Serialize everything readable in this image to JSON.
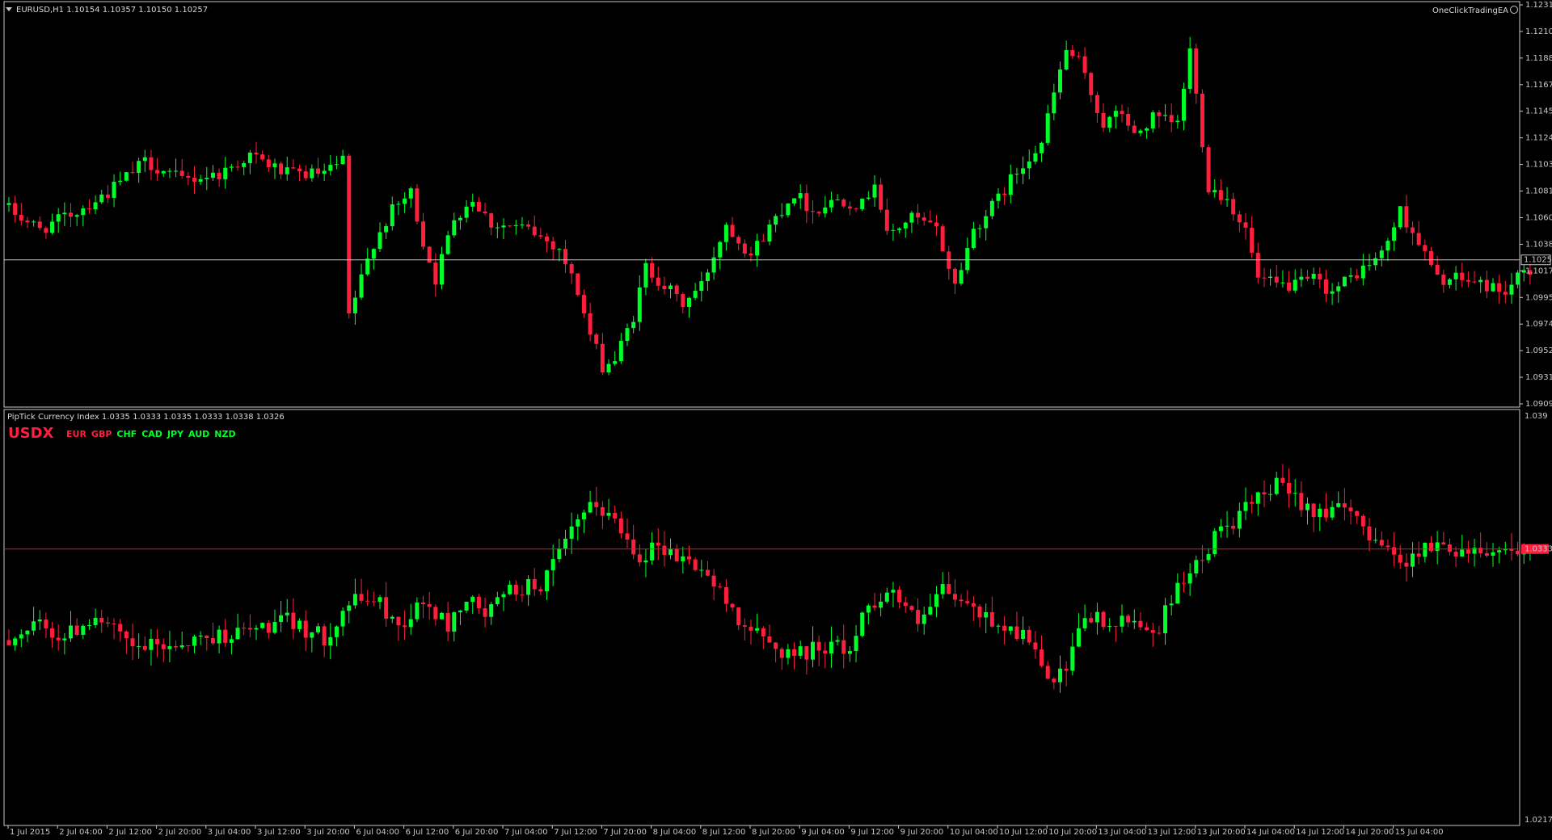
{
  "colors": {
    "background": "#000000",
    "bull": "#00ff2a",
    "bear": "#ff1f3d",
    "axis": "#c8c8c8",
    "bid_line": "#c8c8c8",
    "index_line": "#cc2233",
    "index_tag": "#ff1f3d"
  },
  "header": {
    "symbol_title": "EURUSD,H1  1.10154 1.10357 1.10150 1.10257",
    "ea_label": "OneClickTradingEA",
    "ea_icon": "smiley-icon",
    "menu_icon": "triangle-down-icon"
  },
  "indicator": {
    "title": "PipTick Currency Index 1.0335 1.0333 1.0335 1.0333 1.0338 1.0326",
    "main_symbol": "USDX",
    "main_color": "#ff1f3d",
    "currencies": [
      {
        "code": "EUR",
        "color": "#ff1f3d"
      },
      {
        "code": "GBP",
        "color": "#ff1f3d"
      },
      {
        "code": "CHF",
        "color": "#00ff2a"
      },
      {
        "code": "CAD",
        "color": "#00ff2a"
      },
      {
        "code": "JPY",
        "color": "#00ff2a"
      },
      {
        "code": "AUD",
        "color": "#00ff2a"
      },
      {
        "code": "NZD",
        "color": "#00ff2a"
      }
    ]
  },
  "main_axis": {
    "labels": [
      "1.12315",
      "1.12100",
      "1.11885",
      "1.11670",
      "1.11455",
      "1.11240",
      "1.11030",
      "1.10815",
      "1.10600",
      "1.10385",
      "1.10170",
      "1.09955",
      "1.09740",
      "1.09525",
      "1.09310",
      "1.09095"
    ],
    "min": 1.09095,
    "max": 1.12315,
    "current_price": "1.10257",
    "current_value": 1.10257
  },
  "index_axis": {
    "top_label": "1.039",
    "bottom_label": "1.0217",
    "min": 1.0217,
    "max": 1.039,
    "current_label": "1.0333",
    "current_value": 1.0333
  },
  "time_axis": {
    "labels": [
      "1 Jul 2015",
      "2 Jul 04:00",
      "2 Jul 12:00",
      "2 Jul 20:00",
      "3 Jul 04:00",
      "3 Jul 12:00",
      "3 Jul 20:00",
      "6 Jul 04:00",
      "6 Jul 12:00",
      "6 Jul 20:00",
      "7 Jul 04:00",
      "7 Jul 12:00",
      "7 Jul 20:00",
      "8 Jul 04:00",
      "8 Jul 12:00",
      "8 Jul 20:00",
      "9 Jul 04:00",
      "9 Jul 12:00",
      "9 Jul 20:00",
      "10 Jul 04:00",
      "10 Jul 12:00",
      "10 Jul 20:00",
      "13 Jul 04:00",
      "13 Jul 12:00",
      "13 Jul 20:00",
      "14 Jul 04:00",
      "14 Jul 12:00",
      "14 Jul 20:00",
      "15 Jul 04:00"
    ]
  },
  "chart_data": [
    {
      "type": "candlestick",
      "symbol": "EURUSD",
      "timeframe": "H1",
      "ylim": [
        1.09095,
        1.12315
      ],
      "waypoints": [
        [
          0,
          1.107
        ],
        [
          6,
          1.105
        ],
        [
          12,
          1.1065
        ],
        [
          17,
          1.108
        ],
        [
          23,
          1.1105
        ],
        [
          29,
          1.109
        ],
        [
          35,
          1.1095
        ],
        [
          40,
          1.111
        ],
        [
          46,
          1.1095
        ],
        [
          52,
          1.1095
        ],
        [
          55,
          1.1105
        ],
        [
          56,
          1.098
        ],
        [
          58,
          1.101
        ],
        [
          60,
          1.104
        ],
        [
          63,
          1.1065
        ],
        [
          66,
          1.108
        ],
        [
          68,
          1.104
        ],
        [
          70,
          1.101
        ],
        [
          73,
          1.106
        ],
        [
          76,
          1.1075
        ],
        [
          79,
          1.1055
        ],
        [
          85,
          1.105
        ],
        [
          90,
          1.1035
        ],
        [
          93,
          1.1
        ],
        [
          95,
          1.0965
        ],
        [
          97,
          1.094
        ],
        [
          99,
          1.0945
        ],
        [
          102,
          1.098
        ],
        [
          104,
          1.102
        ],
        [
          107,
          1.1005
        ],
        [
          110,
          1.099
        ],
        [
          113,
          1.1005
        ],
        [
          117,
          1.1055
        ],
        [
          121,
          1.103
        ],
        [
          125,
          1.106
        ],
        [
          128,
          1.108
        ],
        [
          131,
          1.1065
        ],
        [
          135,
          1.1075
        ],
        [
          139,
          1.107
        ],
        [
          141,
          1.109
        ],
        [
          143,
          1.1045
        ],
        [
          147,
          1.106
        ],
        [
          151,
          1.105
        ],
        [
          154,
          1.1005
        ],
        [
          157,
          1.105
        ],
        [
          161,
          1.1075
        ],
        [
          163,
          1.109
        ],
        [
          166,
          1.111
        ],
        [
          168,
          1.112
        ],
        [
          170,
          1.116
        ],
        [
          172,
          1.1195
        ],
        [
          174,
          1.1185
        ],
        [
          176,
          1.116
        ],
        [
          178,
          1.1135
        ],
        [
          181,
          1.1145
        ],
        [
          183,
          1.1125
        ],
        [
          186,
          1.114
        ],
        [
          190,
          1.1135
        ],
        [
          192,
          1.1195
        ],
        [
          195,
          1.1085
        ],
        [
          198,
          1.1075
        ],
        [
          201,
          1.105
        ],
        [
          203,
          1.101
        ],
        [
          206,
          1.1005
        ],
        [
          209,
          1.1005
        ],
        [
          212,
          1.101
        ],
        [
          215,
          1.1
        ],
        [
          219,
          1.1015
        ],
        [
          223,
          1.103
        ],
        [
          226,
          1.1065
        ],
        [
          229,
          1.104
        ],
        [
          232,
          1.101
        ],
        [
          236,
          1.101
        ],
        [
          240,
          1.1005
        ],
        [
          243,
          1.1
        ],
        [
          246,
          1.1015
        ]
      ]
    },
    {
      "type": "candlestick",
      "symbol": "USDX",
      "ylim": [
        1.0217,
        1.039
      ],
      "waypoints": [
        [
          0,
          1.0294
        ],
        [
          6,
          1.03
        ],
        [
          10,
          1.0295
        ],
        [
          15,
          1.0305
        ],
        [
          21,
          1.029
        ],
        [
          27,
          1.0292
        ],
        [
          33,
          1.0295
        ],
        [
          40,
          1.0298
        ],
        [
          46,
          1.0302
        ],
        [
          52,
          1.0295
        ],
        [
          56,
          1.031
        ],
        [
          60,
          1.0312
        ],
        [
          64,
          1.03
        ],
        [
          68,
          1.031
        ],
        [
          72,
          1.03
        ],
        [
          75,
          1.0312
        ],
        [
          78,
          1.0305
        ],
        [
          82,
          1.0315
        ],
        [
          87,
          1.0318
        ],
        [
          90,
          1.033
        ],
        [
          93,
          1.0345
        ],
        [
          96,
          1.0352
        ],
        [
          99,
          1.0345
        ],
        [
          103,
          1.033
        ],
        [
          106,
          1.0335
        ],
        [
          109,
          1.033
        ],
        [
          113,
          1.0325
        ],
        [
          117,
          1.031
        ],
        [
          121,
          1.0298
        ],
        [
          125,
          1.029
        ],
        [
          129,
          1.0288
        ],
        [
          133,
          1.0292
        ],
        [
          137,
          1.029
        ],
        [
          140,
          1.031
        ],
        [
          144,
          1.0315
        ],
        [
          148,
          1.03
        ],
        [
          152,
          1.0315
        ],
        [
          155,
          1.031
        ],
        [
          158,
          1.0305
        ],
        [
          162,
          1.03
        ],
        [
          166,
          1.0295
        ],
        [
          169,
          1.0275
        ],
        [
          172,
          1.028
        ],
        [
          175,
          1.0305
        ],
        [
          179,
          1.03
        ],
        [
          183,
          1.0302
        ],
        [
          187,
          1.0298
        ],
        [
          190,
          1.032
        ],
        [
          193,
          1.0325
        ],
        [
          196,
          1.0338
        ],
        [
          199,
          1.0345
        ],
        [
          202,
          1.0352
        ],
        [
          206,
          1.036
        ],
        [
          209,
          1.0355
        ],
        [
          212,
          1.035
        ],
        [
          215,
          1.035
        ],
        [
          218,
          1.0348
        ],
        [
          221,
          1.034
        ],
        [
          224,
          1.0335
        ],
        [
          226,
          1.0325
        ],
        [
          228,
          1.0332
        ],
        [
          232,
          1.0334
        ],
        [
          236,
          1.0333
        ],
        [
          240,
          1.0333
        ],
        [
          244,
          1.0333
        ],
        [
          246,
          1.0333
        ]
      ]
    }
  ]
}
